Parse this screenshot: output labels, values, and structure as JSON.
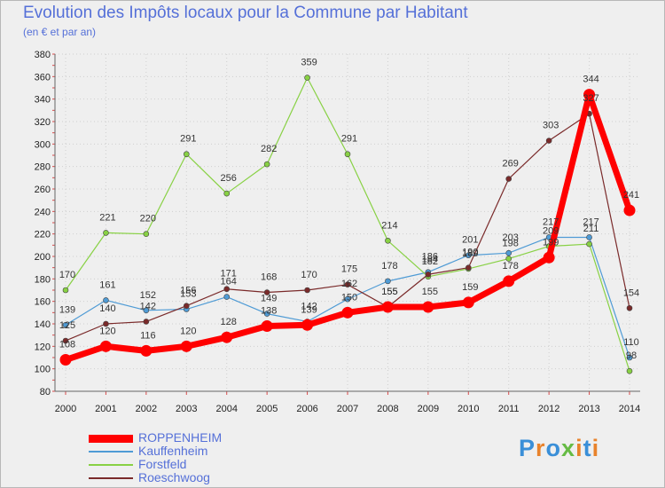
{
  "header": {
    "title": "Evolution des Impôts locaux pour la Commune par Habitant",
    "subtitle": "(en € et par an)"
  },
  "logo": {
    "letters": [
      "P",
      "r",
      "o",
      "x",
      "i",
      "t",
      "i"
    ],
    "colors": [
      "#3a8fd8",
      "#e8832c",
      "#3a8fd8",
      "#66bb44",
      "#e8832c",
      "#3a8fd8",
      "#e8832c"
    ]
  },
  "chart_data": {
    "type": "line",
    "title": "Evolution des Impôts locaux pour la Commune par Habitant",
    "ylabel": "(en € et par an)",
    "x": [
      "2000",
      "2001",
      "2002",
      "2003",
      "2004",
      "2005",
      "2006",
      "2007",
      "2008",
      "2009",
      "2010",
      "2011",
      "2012",
      "2013",
      "2014"
    ],
    "ylim": [
      80,
      380
    ],
    "yticks": [
      80,
      100,
      120,
      140,
      160,
      180,
      200,
      220,
      240,
      260,
      280,
      300,
      320,
      340,
      360,
      380
    ],
    "grid": true,
    "legend_position": "bottom-left",
    "series": [
      {
        "name": "ROPPENHEIM",
        "color": "#ff0000",
        "emphasis": true,
        "values": [
          108,
          120,
          116,
          120,
          128,
          138,
          139,
          150,
          155,
          155,
          159,
          178,
          199,
          344,
          241
        ],
        "labels": [
          "108",
          "120",
          "116",
          "120",
          "128",
          "138",
          "139",
          "150",
          "155",
          "155",
          "159",
          "178",
          "199",
          "344",
          "241"
        ]
      },
      {
        "name": "Kauffenheim",
        "color": "#4f9bd5",
        "emphasis": false,
        "values": [
          139,
          161,
          152,
          153,
          164,
          149,
          142,
          162,
          178,
          186,
          201,
          203,
          217,
          217,
          110
        ],
        "labels": [
          "139",
          "161",
          "152",
          "153",
          "164",
          "149",
          "142",
          "162",
          "178",
          "186",
          "201",
          "203",
          "217",
          "217",
          "110"
        ]
      },
      {
        "name": "Forstfeld",
        "color": "#88d144",
        "emphasis": false,
        "values": [
          170,
          221,
          220,
          291,
          256,
          282,
          359,
          291,
          214,
          182,
          189,
          198,
          209,
          211,
          98
        ],
        "labels": [
          "170",
          "221",
          "220",
          "291",
          "256",
          "282",
          "359",
          "291",
          "214",
          "182",
          "189",
          "198",
          "209",
          "211",
          "98"
        ]
      },
      {
        "name": "Roeschwoog",
        "color": "#7a2a2a",
        "emphasis": false,
        "values": [
          125,
          140,
          142,
          156,
          171,
          168,
          170,
          175,
          155,
          184,
          190,
          269,
          303,
          327,
          154
        ],
        "labels": [
          "125",
          "140",
          "142",
          "156",
          "171",
          "168",
          "170",
          "175",
          "155",
          "184",
          "190",
          "269",
          "303",
          "327",
          "154"
        ]
      }
    ]
  }
}
